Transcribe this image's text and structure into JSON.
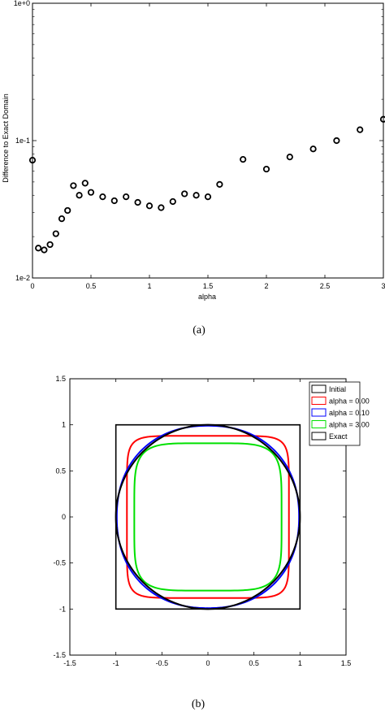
{
  "chart_data": [
    {
      "type": "scatter",
      "caption": "(a)",
      "xlabel": "alpha",
      "ylabel": "Difference to Exact Domain",
      "xlim": [
        0,
        3
      ],
      "ylim": [
        0.01,
        1
      ],
      "yscale": "log",
      "x_ticks": [
        "0",
        "0.5",
        "1",
        "1.5",
        "2",
        "2.5",
        "3"
      ],
      "y_ticks": [
        "1e-2",
        "1e-1",
        "1e+0"
      ],
      "grid": false,
      "marker": "hollow-circle",
      "x": [
        0,
        0.05,
        0.1,
        0.15,
        0.2,
        0.25,
        0.3,
        0.35,
        0.4,
        0.45,
        0.5,
        0.6,
        0.7,
        0.8,
        0.9,
        1.0,
        1.1,
        1.2,
        1.3,
        1.4,
        1.5,
        1.6,
        1.8,
        2.0,
        2.2,
        2.4,
        2.6,
        2.8,
        3.0
      ],
      "y": [
        0.072,
        0.0165,
        0.016,
        0.0175,
        0.021,
        0.027,
        0.031,
        0.047,
        0.04,
        0.049,
        0.042,
        0.039,
        0.0365,
        0.039,
        0.0355,
        0.0335,
        0.0325,
        0.036,
        0.041,
        0.04,
        0.039,
        0.048,
        0.073,
        0.062,
        0.076,
        0.087,
        0.1,
        0.12,
        0.143
      ]
    },
    {
      "type": "line",
      "caption": "(b)",
      "xlim": [
        -1.5,
        1.5
      ],
      "ylim": [
        -1.5,
        1.5
      ],
      "x_ticks": [
        "-1.5",
        "-1",
        "-0.5",
        "0",
        "0.5",
        "1",
        "1.5"
      ],
      "y_ticks": [
        "-1.5",
        "-1",
        "-0.5",
        "0",
        "0.5",
        "1",
        "1.5"
      ],
      "grid": false,
      "legend_position": "top-right",
      "series": [
        {
          "name": "Initial",
          "color": "#000000",
          "shape": "square",
          "half_width": 1.0
        },
        {
          "name": "alpha = 0.00",
          "color": "#ff0000",
          "shape": "superellipse",
          "half_width": 0.88,
          "exponent": 8
        },
        {
          "name": "alpha = 0.10",
          "color": "#0000ff",
          "shape": "superellipse",
          "half_width": 0.99,
          "exponent": 2.2
        },
        {
          "name": "alpha = 3.00",
          "color": "#00e000",
          "shape": "superellipse",
          "half_width": 0.8,
          "exponent": 5
        },
        {
          "name": "Exact",
          "color": "#000000",
          "shape": "circle",
          "half_width": 1.0
        }
      ]
    }
  ]
}
